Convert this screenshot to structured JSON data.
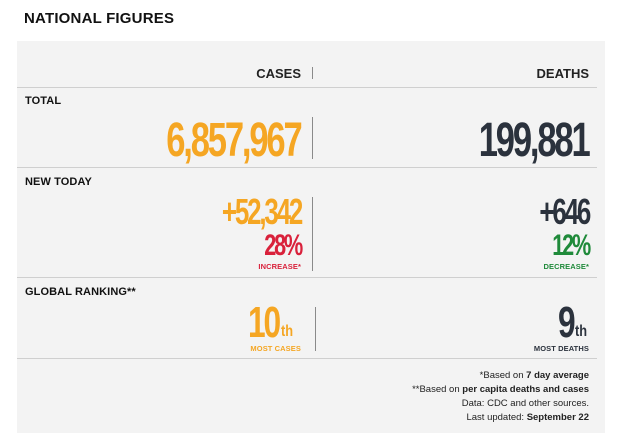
{
  "title": "NATIONAL FIGURES",
  "columns": {
    "cases": "CASES",
    "deaths": "DEATHS"
  },
  "rows": {
    "total": {
      "label": "TOTAL",
      "cases": "6,857,967",
      "deaths": "199,881"
    },
    "new_today": {
      "label": "NEW TODAY",
      "cases": "+52,342",
      "cases_pct": "28%",
      "cases_change": "INCREASE*",
      "deaths": "+646",
      "deaths_pct": "12%",
      "deaths_change": "DECREASE*"
    },
    "global_ranking": {
      "label": "GLOBAL RANKING**",
      "cases_rank": "10",
      "cases_suffix": "th",
      "cases_caption": "MOST CASES",
      "deaths_rank": "9",
      "deaths_suffix": "th",
      "deaths_caption": "MOST DEATHS"
    }
  },
  "footnotes": {
    "note1_prefix": "*Based on ",
    "note1_bold": "7 day average",
    "note2_prefix": "**Based on ",
    "note2_bold": "per capita deaths and cases",
    "data_source": "Data: CDC and other sources.",
    "updated_prefix": "Last updated: ",
    "updated_bold": "September 22"
  },
  "colors": {
    "cases": "#f5a623",
    "deaths": "#2b323d",
    "increase": "#d9213b",
    "decrease": "#1f8a3a"
  }
}
